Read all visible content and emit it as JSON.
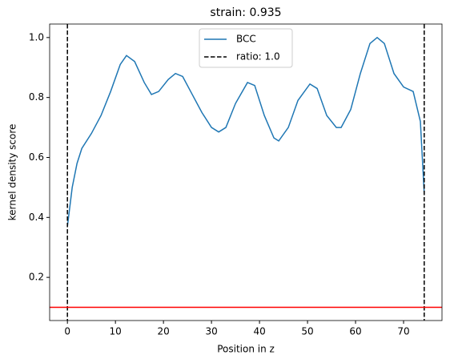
{
  "chart_data": {
    "type": "line",
    "title": "strain: 0.935",
    "xlabel": "Position in z",
    "ylabel": "kernel density score",
    "series": [
      {
        "name": "BCC",
        "color": "#1f77b4",
        "x": [
          0,
          1,
          2,
          3,
          5,
          7,
          9,
          11,
          12.3,
          14,
          16,
          17.5,
          19,
          21,
          22.5,
          24,
          26,
          28,
          30,
          31.5,
          33,
          35,
          37.5,
          39,
          41,
          43,
          44,
          46,
          48,
          50.5,
          52,
          54,
          56,
          57,
          59,
          61,
          63,
          64.5,
          66,
          68,
          70,
          72,
          73.5,
          74.3
        ],
        "values": [
          0.37,
          0.5,
          0.58,
          0.63,
          0.68,
          0.74,
          0.82,
          0.91,
          0.94,
          0.92,
          0.85,
          0.81,
          0.82,
          0.86,
          0.88,
          0.87,
          0.81,
          0.75,
          0.7,
          0.685,
          0.7,
          0.78,
          0.85,
          0.84,
          0.74,
          0.665,
          0.655,
          0.7,
          0.79,
          0.845,
          0.83,
          0.74,
          0.7,
          0.7,
          0.76,
          0.88,
          0.98,
          1.0,
          0.98,
          0.88,
          0.835,
          0.82,
          0.72,
          0.48
        ]
      }
    ],
    "vlines": {
      "name": "ratio: 1.0",
      "color": "#000000",
      "values": [
        0,
        74.3
      ]
    },
    "hline": {
      "color": "#ff0000",
      "value": 0.1
    },
    "xlim": [
      -3.7,
      78
    ],
    "xticks": [
      0,
      10,
      20,
      30,
      40,
      50,
      60,
      70
    ],
    "ylim": [
      0.056,
      1.045
    ],
    "yticks": [
      0.2,
      0.4,
      0.6,
      0.8,
      {
        "value": 1,
        "label": "1.0"
      }
    ],
    "legend": "upper center"
  }
}
